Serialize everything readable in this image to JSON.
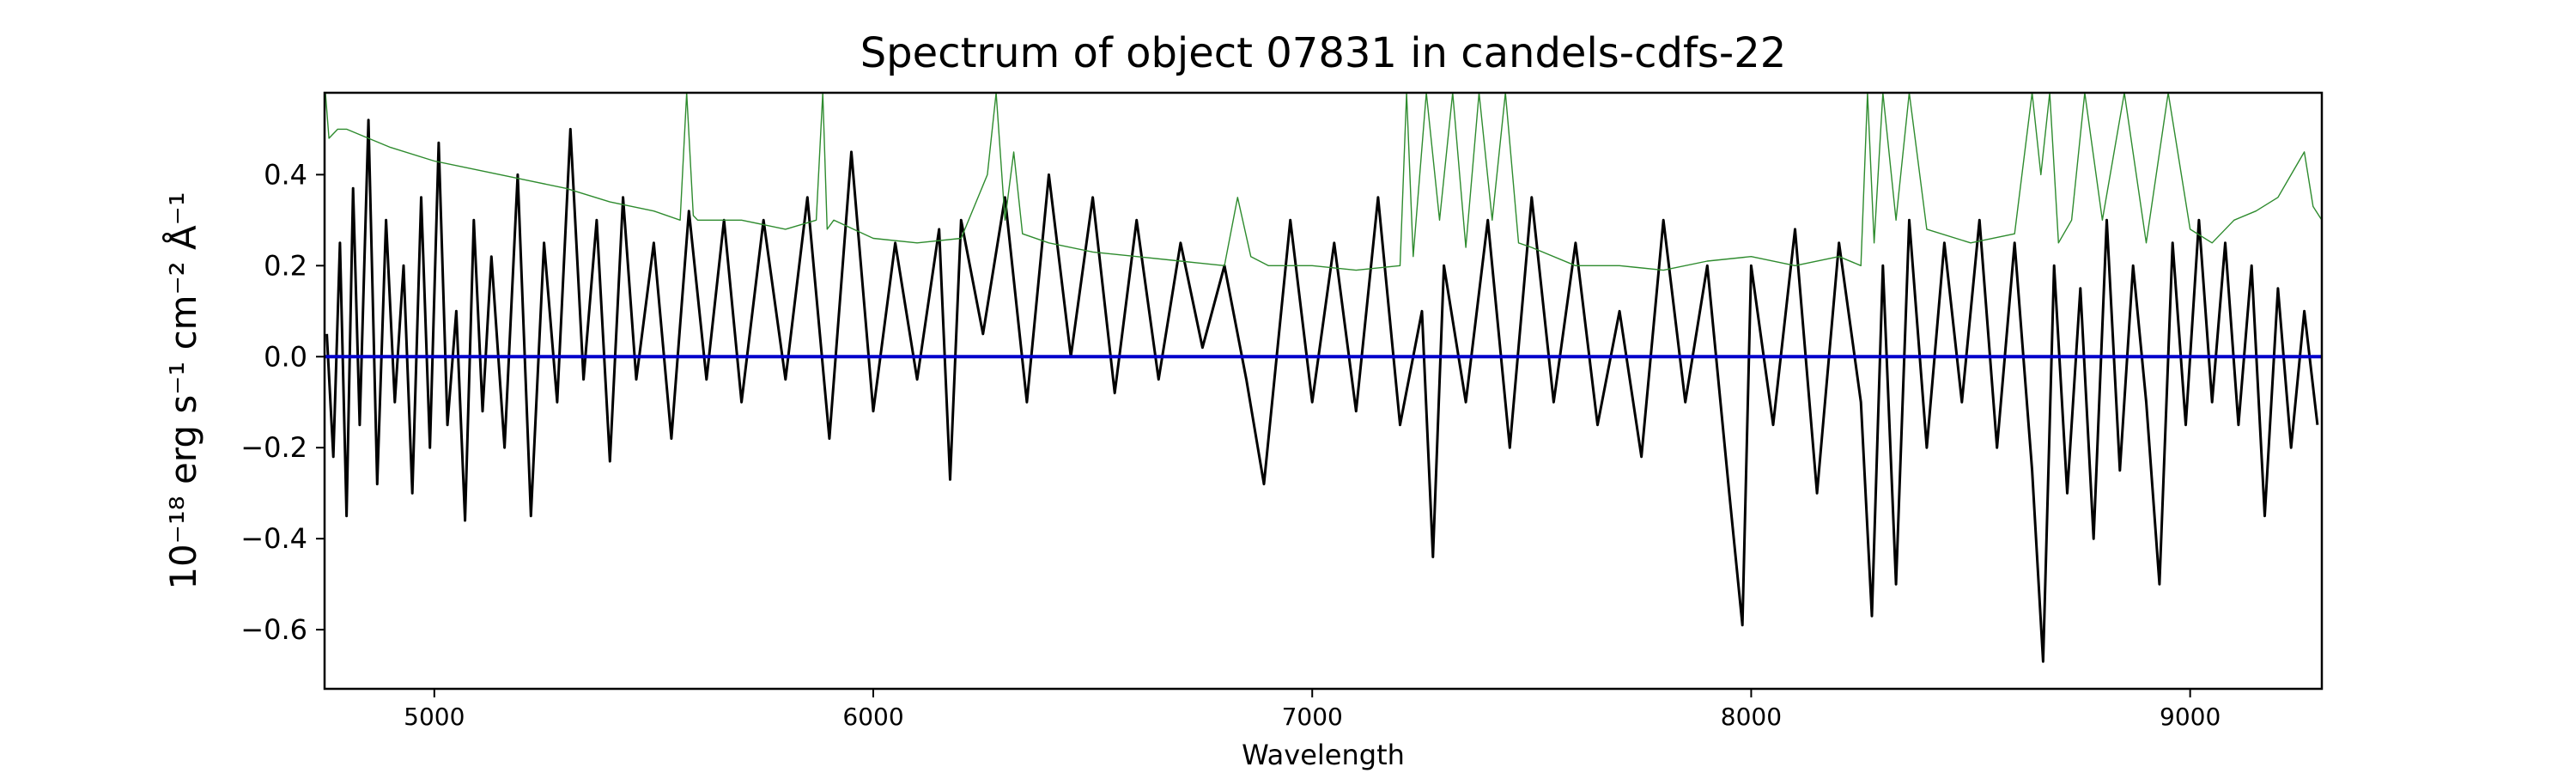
{
  "chart_data": {
    "type": "line",
    "title": "Spectrum of object 07831 in candels-cdfs-22",
    "xlabel": "Wavelength",
    "ylabel": "10⁻¹⁸ erg s⁻¹ cm⁻² Å⁻¹",
    "xlim": [
      4750,
      9300
    ],
    "ylim": [
      -0.73,
      0.58
    ],
    "x_ticks": [
      5000,
      6000,
      7000,
      8000,
      9000
    ],
    "y_ticks": [
      -0.6,
      -0.4,
      -0.2,
      0.0,
      0.2,
      0.4
    ],
    "x_tick_labels": [
      "5000",
      "6000",
      "7000",
      "8000",
      "9000"
    ],
    "y_tick_labels": [
      "−0.6",
      "−0.4",
      "−0.2",
      "0.0",
      "0.2",
      "0.4"
    ],
    "grid": false,
    "series": [
      {
        "color": "#000000",
        "x": [
          4755,
          4770,
          4785,
          4800,
          4815,
          4830,
          4850,
          4870,
          4890,
          4910,
          4930,
          4950,
          4970,
          4990,
          5010,
          5030,
          5050,
          5070,
          5090,
          5110,
          5130,
          5160,
          5190,
          5220,
          5250,
          5280,
          5310,
          5340,
          5370,
          5400,
          5430,
          5460,
          5500,
          5540,
          5580,
          5620,
          5660,
          5700,
          5750,
          5800,
          5850,
          5900,
          5950,
          6000,
          6050,
          6100,
          6150,
          6175,
          6200,
          6250,
          6300,
          6350,
          6400,
          6450,
          6500,
          6550,
          6600,
          6650,
          6700,
          6750,
          6800,
          6850,
          6890,
          6950,
          7000,
          7050,
          7100,
          7150,
          7200,
          7250,
          7275,
          7300,
          7350,
          7400,
          7450,
          7500,
          7550,
          7600,
          7650,
          7700,
          7750,
          7800,
          7850,
          7900,
          7950,
          7980,
          8000,
          8050,
          8100,
          8150,
          8200,
          8250,
          8275,
          8300,
          8330,
          8360,
          8400,
          8440,
          8480,
          8520,
          8560,
          8600,
          8640,
          8665,
          8690,
          8720,
          8750,
          8780,
          8810,
          8840,
          8870,
          8900,
          8930,
          8960,
          8990,
          9020,
          9050,
          9080,
          9110,
          9140,
          9170,
          9200,
          9230,
          9260,
          9290
        ],
        "y": [
          0.05,
          -0.22,
          0.25,
          -0.35,
          0.37,
          -0.15,
          0.52,
          -0.28,
          0.3,
          -0.1,
          0.2,
          -0.3,
          0.35,
          -0.2,
          0.47,
          -0.15,
          0.1,
          -0.36,
          0.3,
          -0.12,
          0.22,
          -0.2,
          0.4,
          -0.35,
          0.25,
          -0.1,
          0.5,
          -0.05,
          0.3,
          -0.23,
          0.35,
          -0.05,
          0.25,
          -0.18,
          0.32,
          -0.05,
          0.3,
          -0.1,
          0.3,
          -0.05,
          0.35,
          -0.18,
          0.45,
          -0.12,
          0.25,
          -0.05,
          0.28,
          -0.27,
          0.3,
          0.05,
          0.35,
          -0.1,
          0.4,
          0.0,
          0.35,
          -0.08,
          0.3,
          -0.05,
          0.25,
          0.02,
          0.2,
          -0.05,
          -0.28,
          0.3,
          -0.1,
          0.25,
          -0.12,
          0.35,
          -0.15,
          0.1,
          -0.44,
          0.2,
          -0.1,
          0.3,
          -0.2,
          0.35,
          -0.1,
          0.25,
          -0.15,
          0.1,
          -0.22,
          0.3,
          -0.1,
          0.2,
          -0.3,
          -0.59,
          0.2,
          -0.15,
          0.28,
          -0.3,
          0.25,
          -0.1,
          -0.57,
          0.2,
          -0.5,
          0.3,
          -0.2,
          0.25,
          -0.1,
          0.3,
          -0.2,
          0.25,
          -0.25,
          -0.67,
          0.2,
          -0.3,
          0.15,
          -0.4,
          0.3,
          -0.25,
          0.2,
          -0.1,
          -0.5,
          0.25,
          -0.15,
          0.3,
          -0.1,
          0.25,
          -0.15,
          0.2,
          -0.35,
          0.15,
          -0.2,
          0.1,
          -0.15
        ]
      },
      {
        "color": "#2e8b2e",
        "x": [
          4752,
          4760,
          4780,
          4800,
          4850,
          4900,
          5000,
          5100,
          5200,
          5300,
          5400,
          5500,
          5560,
          5575,
          5590,
          5600,
          5700,
          5800,
          5870,
          5885,
          5895,
          5910,
          6000,
          6100,
          6200,
          6260,
          6280,
          6300,
          6320,
          6340,
          6400,
          6500,
          6600,
          6700,
          6800,
          6830,
          6860,
          6900,
          7000,
          7100,
          7200,
          7215,
          7230,
          7260,
          7290,
          7320,
          7350,
          7380,
          7410,
          7440,
          7470,
          7500,
          7600,
          7700,
          7800,
          7900,
          8000,
          8100,
          8200,
          8250,
          8265,
          8280,
          8300,
          8330,
          8360,
          8400,
          8500,
          8600,
          8640,
          8660,
          8680,
          8700,
          8730,
          8760,
          8800,
          8850,
          8900,
          8950,
          9000,
          9050,
          9100,
          9150,
          9200,
          9230,
          9260,
          9280,
          9300
        ],
        "y": [
          0.58,
          0.48,
          0.5,
          0.5,
          0.48,
          0.46,
          0.43,
          0.41,
          0.39,
          0.37,
          0.34,
          0.32,
          0.3,
          0.58,
          0.31,
          0.3,
          0.3,
          0.28,
          0.3,
          0.58,
          0.28,
          0.3,
          0.26,
          0.25,
          0.26,
          0.4,
          0.58,
          0.3,
          0.45,
          0.27,
          0.25,
          0.23,
          0.22,
          0.21,
          0.2,
          0.35,
          0.22,
          0.2,
          0.2,
          0.19,
          0.2,
          0.58,
          0.22,
          0.58,
          0.3,
          0.58,
          0.24,
          0.58,
          0.3,
          0.58,
          0.25,
          0.24,
          0.2,
          0.2,
          0.19,
          0.21,
          0.22,
          0.2,
          0.22,
          0.2,
          0.58,
          0.25,
          0.58,
          0.3,
          0.58,
          0.28,
          0.25,
          0.27,
          0.58,
          0.4,
          0.58,
          0.25,
          0.3,
          0.58,
          0.3,
          0.58,
          0.25,
          0.58,
          0.28,
          0.25,
          0.3,
          0.32,
          0.35,
          0.4,
          0.45,
          0.33,
          0.3
        ]
      },
      {
        "color": "#0000cc",
        "x": [
          4750,
          9300
        ],
        "y": [
          0.0,
          0.0
        ]
      }
    ]
  }
}
